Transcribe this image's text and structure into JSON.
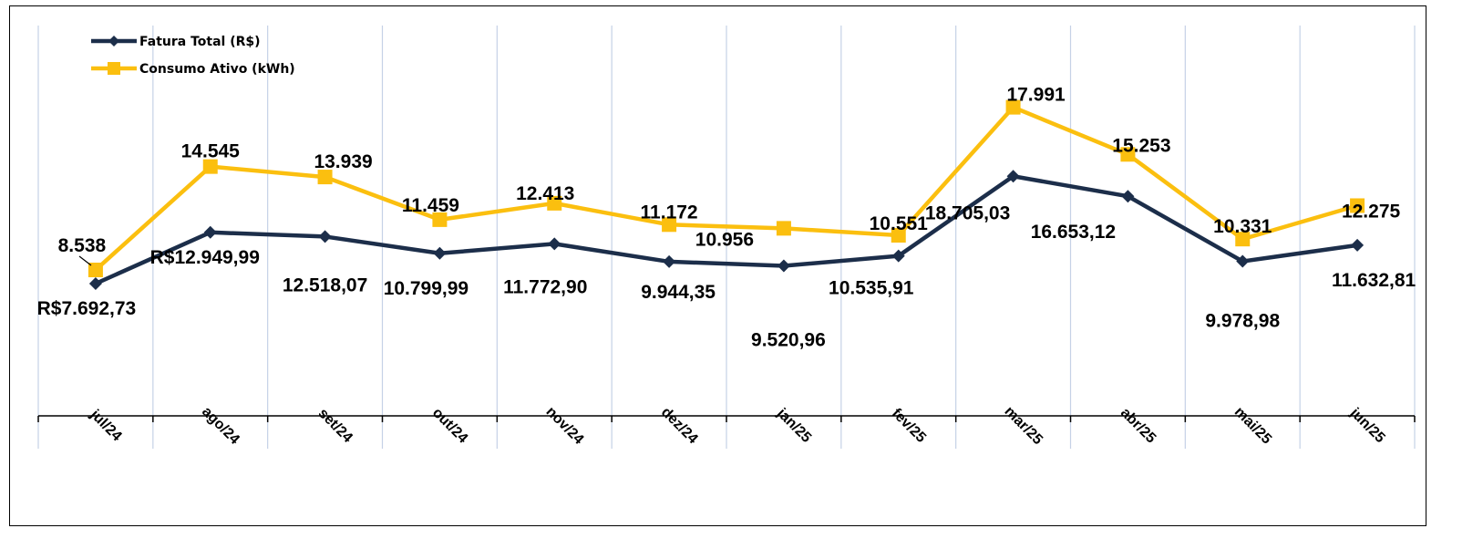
{
  "chart_data": {
    "type": "line",
    "categories": [
      "jul/24",
      "ago/24",
      "set/24",
      "out/24",
      "nov/24",
      "dez/24",
      "jan/25",
      "fev/25",
      "mar/25",
      "abr/25",
      "mai/25",
      "jun/25"
    ],
    "series": [
      {
        "name": "Fatura Total (R$)",
        "color": "#1c2e4a",
        "marker": "diamond",
        "values": [
          7692.73,
          12949.99,
          12518.07,
          10799.99,
          11772.9,
          9944.35,
          9520.96,
          10535.91,
          18705.03,
          16653.12,
          9978.98,
          11632.81
        ],
        "labels": [
          "R$7.692,73",
          "R$12.949,99",
          "12.518,07",
          "10.799,99",
          "11.772,90",
          "9.944,35",
          "9.520,96",
          "10.535,91",
          "18.705,03",
          "16.653,12",
          "9.978,98",
          "11.632,81"
        ]
      },
      {
        "name": "Consumo Ativo (kWh)",
        "color": "#fbbf0f",
        "marker": "square",
        "values": [
          8538,
          14545,
          13939,
          11459,
          12413,
          11172,
          10956,
          10551,
          17991,
          15253,
          10331,
          12275
        ],
        "labels": [
          "8.538",
          "14.545",
          "13.939",
          "11.459",
          "12.413",
          "11.172",
          "10.956",
          "10.551",
          "17.991",
          "15.253",
          "10.331",
          "12.275"
        ]
      }
    ],
    "xlabel": "",
    "ylabel": "",
    "grid": "vertical",
    "legend_position": "top-left",
    "gridline_color": "#c5d1e6"
  }
}
